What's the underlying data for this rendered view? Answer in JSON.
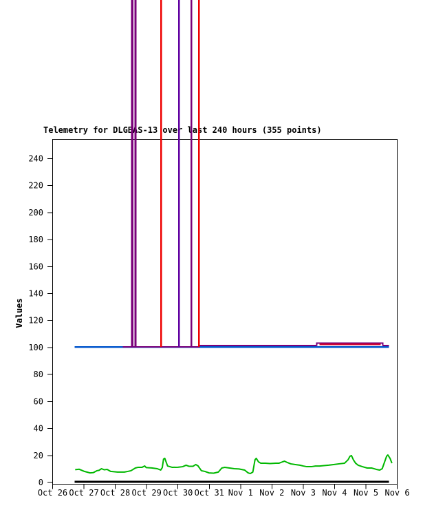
{
  "title": "Telemetry for DLGBAS-13 over last 240 hours (355 points)",
  "background_color": "#ffffff",
  "colors": {
    "axis": "#000000",
    "text": "#000000",
    "blue_series": "#0055cc",
    "purple_series": "#7a007a",
    "violet_series": "#6000a0",
    "red_series": "#ee0000",
    "crimson_segment": "#cc0033",
    "green_series": "#00b800",
    "black_series": "#000000"
  },
  "chart_data": {
    "type": "line",
    "title": "Telemetry for DLGBAS-13 over last 240 hours (355 points)",
    "xlabel": "",
    "ylabel": "Values",
    "grid": false,
    "legend_position": "none",
    "y_ticks": [
      0,
      20,
      40,
      60,
      80,
      100,
      120,
      140,
      160,
      180,
      200,
      220,
      240
    ],
    "y_range": [
      0,
      255
    ],
    "x_tick_labels": [
      "Oct 26",
      "Oct 27",
      "Oct 28",
      "Oct 29",
      "Oct 30",
      "Oct 31",
      "Nov 1",
      "Nov 2",
      "Nov 3",
      "Nov 4",
      "Nov 5",
      "Nov 6"
    ],
    "x_range_days": [
      0,
      11
    ],
    "series": [
      {
        "name": "blue-flat-100",
        "color": "#0055cc",
        "width": 2.5,
        "crisp": true,
        "points": [
          [
            0.7,
            100.4
          ],
          [
            10.74,
            100.4
          ]
        ]
      },
      {
        "name": "purple-cover-100",
        "color": "#7a007a",
        "width": 2,
        "crisp": true,
        "points": [
          [
            2.24,
            100.4
          ],
          [
            4.7,
            100.4
          ]
        ]
      },
      {
        "name": "purple-upper-band",
        "color": "#7a007a",
        "width": 2,
        "crisp": true,
        "points": [
          [
            4.7,
            101.6
          ],
          [
            8.43,
            101.6
          ],
          [
            8.43,
            103.4
          ],
          [
            10.54,
            103.4
          ],
          [
            10.54,
            101.6
          ],
          [
            10.74,
            101.6
          ]
        ]
      },
      {
        "name": "crimson-bump-102",
        "color": "#cc0033",
        "width": 2.5,
        "crisp": true,
        "points": [
          [
            8.52,
            102.3
          ],
          [
            10.47,
            102.3
          ]
        ]
      },
      {
        "name": "black-baseline",
        "color": "#000000",
        "width": 3,
        "crisp": true,
        "points": [
          [
            0.7,
            0.4
          ],
          [
            10.74,
            0.4
          ]
        ]
      },
      {
        "name": "green-telemetry",
        "color": "#00b800",
        "width": 2,
        "crisp": false,
        "points": [
          [
            0.72,
            9.5
          ],
          [
            0.85,
            9.8
          ],
          [
            1.0,
            8.3
          ],
          [
            1.19,
            7.1
          ],
          [
            1.3,
            7.3
          ],
          [
            1.41,
            8.7
          ],
          [
            1.48,
            9.0
          ],
          [
            1.56,
            10.2
          ],
          [
            1.65,
            9.4
          ],
          [
            1.74,
            9.7
          ],
          [
            1.85,
            8.2
          ],
          [
            2.07,
            7.7
          ],
          [
            2.29,
            7.7
          ],
          [
            2.4,
            8.2
          ],
          [
            2.5,
            8.7
          ],
          [
            2.64,
            10.7
          ],
          [
            2.72,
            11.2
          ],
          [
            2.85,
            11.2
          ],
          [
            2.94,
            12.2
          ],
          [
            2.99,
            11.0
          ],
          [
            3.16,
            10.8
          ],
          [
            3.34,
            10.2
          ],
          [
            3.45,
            9.2
          ],
          [
            3.5,
            11.0
          ],
          [
            3.54,
            17.3
          ],
          [
            3.58,
            17.9
          ],
          [
            3.67,
            12.2
          ],
          [
            3.82,
            11.2
          ],
          [
            4.0,
            11.3
          ],
          [
            4.15,
            11.7
          ],
          [
            4.26,
            12.8
          ],
          [
            4.35,
            12.0
          ],
          [
            4.48,
            12.0
          ],
          [
            4.57,
            13.3
          ],
          [
            4.64,
            12.3
          ],
          [
            4.75,
            8.7
          ],
          [
            4.86,
            8.2
          ],
          [
            4.99,
            7.1
          ],
          [
            5.14,
            6.9
          ],
          [
            5.29,
            7.7
          ],
          [
            5.4,
            10.7
          ],
          [
            5.49,
            11.2
          ],
          [
            5.65,
            10.7
          ],
          [
            5.8,
            10.2
          ],
          [
            5.95,
            10.0
          ],
          [
            6.13,
            9.2
          ],
          [
            6.24,
            7.1
          ],
          [
            6.31,
            6.6
          ],
          [
            6.39,
            7.7
          ],
          [
            6.46,
            16.8
          ],
          [
            6.5,
            17.9
          ],
          [
            6.57,
            15.3
          ],
          [
            6.64,
            14.3
          ],
          [
            6.79,
            14.3
          ],
          [
            6.94,
            14.0
          ],
          [
            7.12,
            14.3
          ],
          [
            7.23,
            14.3
          ],
          [
            7.34,
            15.3
          ],
          [
            7.4,
            15.8
          ],
          [
            7.49,
            14.8
          ],
          [
            7.6,
            13.8
          ],
          [
            7.73,
            13.3
          ],
          [
            7.89,
            12.8
          ],
          [
            8.0,
            12.2
          ],
          [
            8.11,
            11.7
          ],
          [
            8.26,
            11.7
          ],
          [
            8.39,
            12.2
          ],
          [
            8.52,
            12.2
          ],
          [
            8.66,
            12.5
          ],
          [
            8.81,
            12.8
          ],
          [
            8.99,
            13.3
          ],
          [
            9.14,
            13.8
          ],
          [
            9.32,
            14.3
          ],
          [
            9.43,
            16.8
          ],
          [
            9.49,
            19.4
          ],
          [
            9.54,
            19.9
          ],
          [
            9.6,
            16.8
          ],
          [
            9.67,
            14.3
          ],
          [
            9.75,
            12.8
          ],
          [
            9.89,
            11.7
          ],
          [
            10.04,
            10.7
          ],
          [
            10.19,
            10.7
          ],
          [
            10.33,
            9.7
          ],
          [
            10.44,
            9.2
          ],
          [
            10.52,
            10.2
          ],
          [
            10.59,
            14.8
          ],
          [
            10.66,
            19.4
          ],
          [
            10.7,
            20.4
          ],
          [
            10.77,
            17.9
          ],
          [
            10.83,
            14.3
          ]
        ]
      }
    ],
    "offscale_spikes": [
      {
        "day": 2.537,
        "width": 3.5,
        "color": "#7a007a",
        "base_value": 100.4
      },
      {
        "day": 2.647,
        "width": 3.0,
        "color": "#7a007a",
        "base_value": 100.4
      },
      {
        "day": 3.465,
        "width": 2.5,
        "color": "#ee0000",
        "base_value": 100.4
      },
      {
        "day": 4.03,
        "width": 2.5,
        "color": "#6000a0",
        "base_value": 100.4
      },
      {
        "day": 4.425,
        "width": 2.5,
        "color": "#7a007a",
        "base_value": 100.4
      },
      {
        "day": 4.673,
        "width": 2.5,
        "color": "#ee0000",
        "base_value": 100.4
      }
    ]
  }
}
